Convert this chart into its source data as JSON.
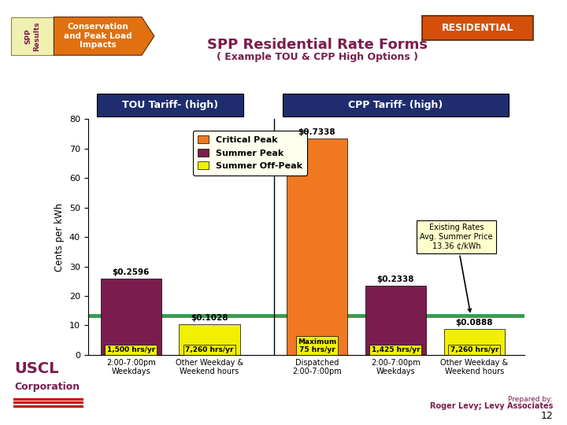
{
  "title": "SPP Residential Rate Forms",
  "subtitle": "( Example TOU & CPP High Options )",
  "ylabel": "Cents per kWh",
  "ylim": [
    0,
    80
  ],
  "yticks": [
    0,
    10,
    20,
    30,
    40,
    50,
    60,
    70,
    80
  ],
  "bg_color": "#FFFFFF",
  "header_tou": "TOU Tariff- (high)",
  "header_cpp": "CPP Tariff- (high)",
  "header_bg": "#1f2d6e",
  "header_fg": "#FFFFFF",
  "residential_label": "RESIDENTIAL",
  "residential_bg": "#d4500a",
  "residential_fg": "#FFFFFF",
  "spp_results_bg": "#f0f0b0",
  "spp_results_text_color": "#7b1c4e",
  "arrow_bg": "#e07010",
  "color_critical_peak": "#f07820",
  "color_summer_peak": "#7b1c4e",
  "color_summer_offpeak": "#f0f000",
  "color_reference_line": "#3a9a4e",
  "reference_line_y": 13.36,
  "bars": [
    {
      "group": "TOU",
      "category": "2:00-7:00pm\nWeekdays",
      "type": "summer_peak",
      "value": 25.96,
      "label": "$0.2596",
      "hrs": "1,500 hrs/yr",
      "hrs_multiline": false
    },
    {
      "group": "TOU",
      "category": "Other Weekday &\nWeekend hours",
      "type": "summer_offpeak",
      "value": 10.28,
      "label": "$0.1028",
      "hrs": "7,260 hrs/yr",
      "hrs_multiline": false
    },
    {
      "group": "CPP",
      "category": "Dispatched\n2:00-7:00pm",
      "type": "critical_peak",
      "value": 73.38,
      "label": "$0.7338",
      "hrs": "Maximum\n75 hrs/yr",
      "hrs_multiline": true
    },
    {
      "group": "CPP",
      "category": "2:00-7:00pm\nWeekdays",
      "type": "summer_peak",
      "value": 23.38,
      "label": "$0.2338",
      "hrs": "1,425 hrs/yr",
      "hrs_multiline": false
    },
    {
      "group": "CPP",
      "category": "Other Weekday &\nWeekend hours",
      "type": "summer_offpeak",
      "value": 8.88,
      "label": "$0.0888",
      "hrs": "7,260 hrs/yr",
      "hrs_multiline": false
    }
  ],
  "legend_items": [
    {
      "label": "Critical Peak",
      "color": "#f07820"
    },
    {
      "label": "Summer Peak",
      "color": "#7b1c4e"
    },
    {
      "label": "Summer Off-Peak",
      "color": "#f0f000"
    }
  ],
  "annotation_text": "Existing Rates\nAvg. Summer Price\n13.36 ¢/kWh",
  "annotation_bg": "#ffffcc",
  "title_color": "#7b1c4e",
  "subtitle_color": "#7b1c4e",
  "footer_prepared": "Prepared by:",
  "footer_name": "Roger Levy; Levy Associates",
  "footer_color": "#7b1c4e",
  "page_num": "12",
  "bar_positions": [
    0,
    1.1,
    2.6,
    3.7,
    4.8
  ],
  "bar_width": 0.85,
  "xlim": [
    -0.6,
    5.5
  ],
  "separator_x": 2.0
}
